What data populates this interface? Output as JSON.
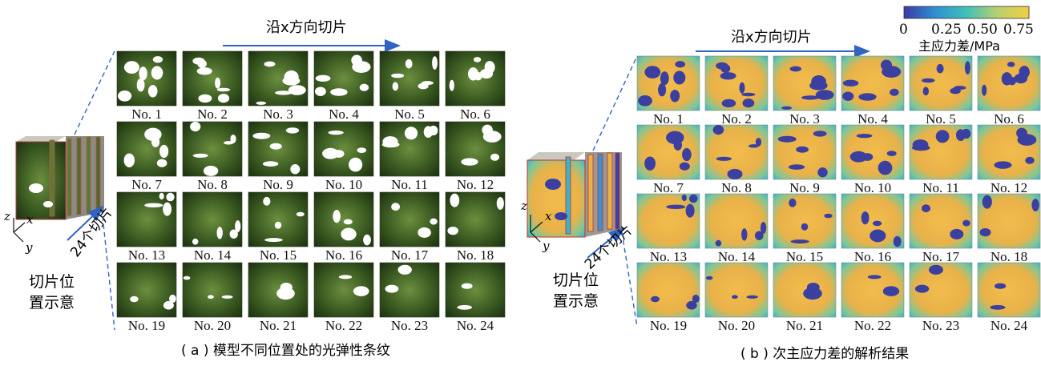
{
  "panel_a": {
    "arrow_label": "沿x方向切片",
    "side_label": "24个切片",
    "cube_caption_line1": "切片位",
    "cube_caption_line2": "置示意",
    "axes": {
      "z": "z",
      "x": "x",
      "y": "y"
    },
    "caption": "( a ) 模型不同位置处的光弹性条纹",
    "tiles": [
      "No. 1",
      "No. 2",
      "No. 3",
      "No. 4",
      "No. 5",
      "No. 6",
      "No. 7",
      "No. 8",
      "No. 9",
      "No. 10",
      "No. 11",
      "No. 12",
      "No. 13",
      "No. 14",
      "No. 15",
      "No. 16",
      "No. 17",
      "No. 18",
      "No. 19",
      "No. 20",
      "No. 21",
      "No. 22",
      "No. 23",
      "No. 24"
    ]
  },
  "panel_b": {
    "arrow_label": "沿x方向切片",
    "side_label": "24个切片",
    "cube_caption_line1": "切片位",
    "cube_caption_line2": "置示意",
    "axes": {
      "z": "z",
      "x": "x",
      "y": "y"
    },
    "caption": "( b ) 次主应力差的解析结果",
    "tiles": [
      "No. 1",
      "No. 2",
      "No. 3",
      "No. 4",
      "No. 5",
      "No. 6",
      "No. 7",
      "No. 8",
      "No. 9",
      "No. 10",
      "No. 11",
      "No. 12",
      "No. 13",
      "No. 14",
      "No. 15",
      "No. 16",
      "No. 17",
      "No. 18",
      "No. 19",
      "No. 20",
      "No. 21",
      "No. 22",
      "No. 23",
      "No. 24"
    ],
    "colorbar": {
      "ticks": [
        "0",
        "0.25",
        "0.50",
        "0.75"
      ],
      "label": "主应力差/MPa",
      "colors": [
        "#3a3aa6",
        "#2f8fd0",
        "#3fc0b8",
        "#b8d070",
        "#f0c040"
      ]
    }
  },
  "colors": {
    "fringe_dark": "#1e3312",
    "fringe_mid": "#4a6e2c",
    "fringe_light": "#8fb061",
    "stress_blue": "#3b3fa0",
    "stress_teal": "#35b0c8",
    "stress_orange": "#f0b848",
    "arrow_blue": "#2f63c4"
  }
}
